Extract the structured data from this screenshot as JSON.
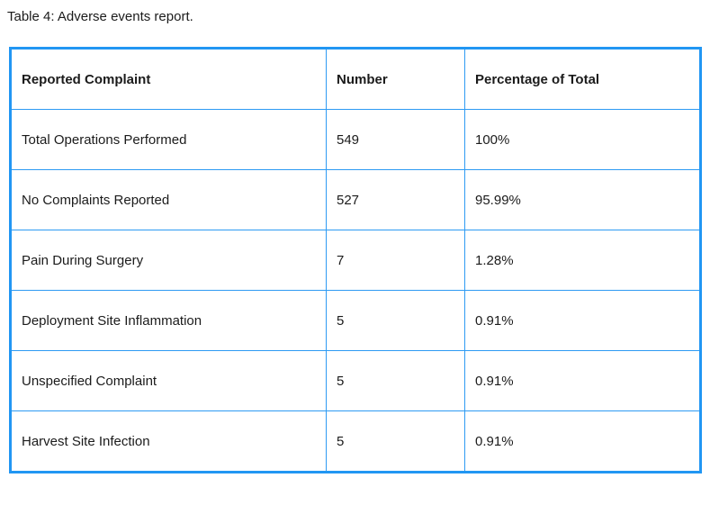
{
  "caption": "Table 4: Adverse events report.",
  "table": {
    "columns": [
      "Reported Complaint",
      "Number",
      "Percentage of Total"
    ],
    "rows": [
      [
        "Total Operations Performed",
        "549",
        "100%"
      ],
      [
        "No Complaints Reported",
        "527",
        "95.99%"
      ],
      [
        "Pain During Surgery",
        "7",
        "1.28%"
      ],
      [
        "Deployment Site Inflammation",
        "5",
        "0.91%"
      ],
      [
        "Unspecified Complaint",
        "5",
        "0.91%"
      ],
      [
        "Harvest Site Infection",
        "5",
        "0.91%"
      ]
    ]
  },
  "colors": {
    "border_outer": "#2196f3",
    "border_inner": "#2e9bf3",
    "text": "#1b1b1b",
    "background": "#ffffff"
  }
}
